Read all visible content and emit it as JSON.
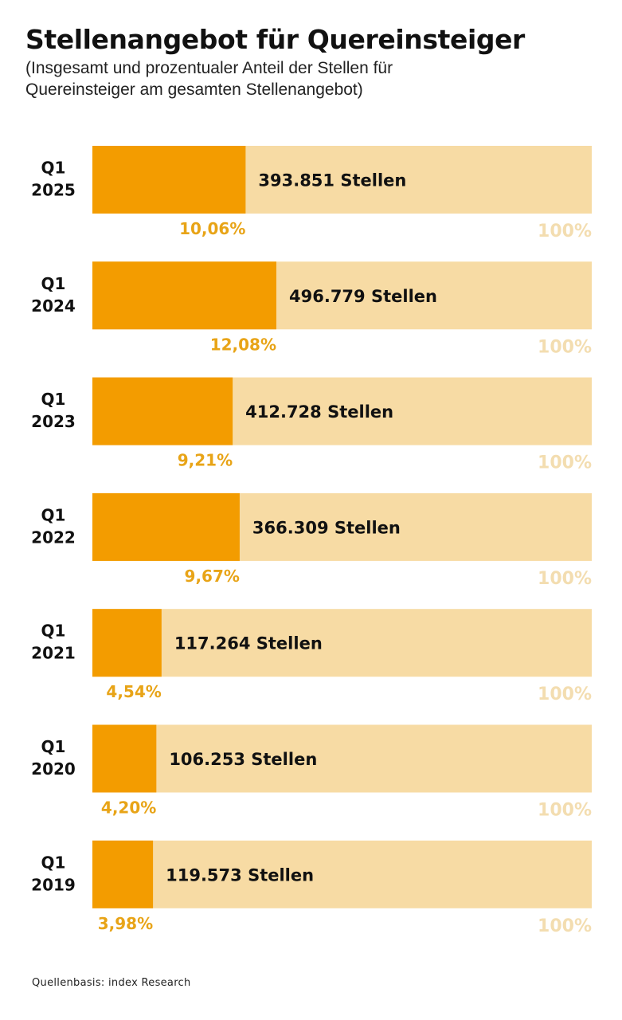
{
  "header": {
    "title": "Stellenangebot für Quereinsteiger",
    "subtitle": "(Insgesamt und prozentualer Anteil der Stellen für Quereinsteiger am gesamten Stellenangebot)"
  },
  "footer": {
    "source": "Quellenbasis: index Research"
  },
  "colors": {
    "share_bar": "#F39C00",
    "total_bar": "#F7DBA4",
    "share_label": "#E8A417",
    "total_label": "#F3DDB0",
    "text": "#111111"
  },
  "chart_data": {
    "type": "bar",
    "orientation": "horizontal",
    "title": "Stellenangebot für Quereinsteiger",
    "subtitle": "(Insgesamt und prozentualer Anteil der Stellen für Quereinsteiger am gesamten Stellenangebot)",
    "categories": [
      [
        "Q1",
        "2025"
      ],
      [
        "Q1",
        "2024"
      ],
      [
        "Q1",
        "2023"
      ],
      [
        "Q1",
        "2022"
      ],
      [
        "Q1",
        "2021"
      ],
      [
        "Q1",
        "2020"
      ],
      [
        "Q1",
        "2019"
      ]
    ],
    "series": [
      {
        "values": [
          10.06,
          12.08,
          9.21,
          9.67,
          4.54,
          4.2,
          3.98
        ],
        "labels": [
          "10,06%",
          "12,08%",
          "9,21%",
          "9,67%",
          "4,54%",
          "4,20%",
          "3,98%"
        ]
      }
    ],
    "totals": {
      "values": [
        393851,
        496779,
        412728,
        366309,
        117264,
        106253,
        119573
      ],
      "labels": [
        "393.851 Stellen",
        "496.779 Stellen",
        "412.728 Stellen",
        "366.309 Stellen",
        "117.264 Stellen",
        "106.253 Stellen",
        "119.573 Stellen"
      ]
    },
    "full_scale_label": "100%",
    "xlim": [
      0,
      100
    ],
    "grid": false,
    "source": "Quellenbasis: index Research"
  }
}
